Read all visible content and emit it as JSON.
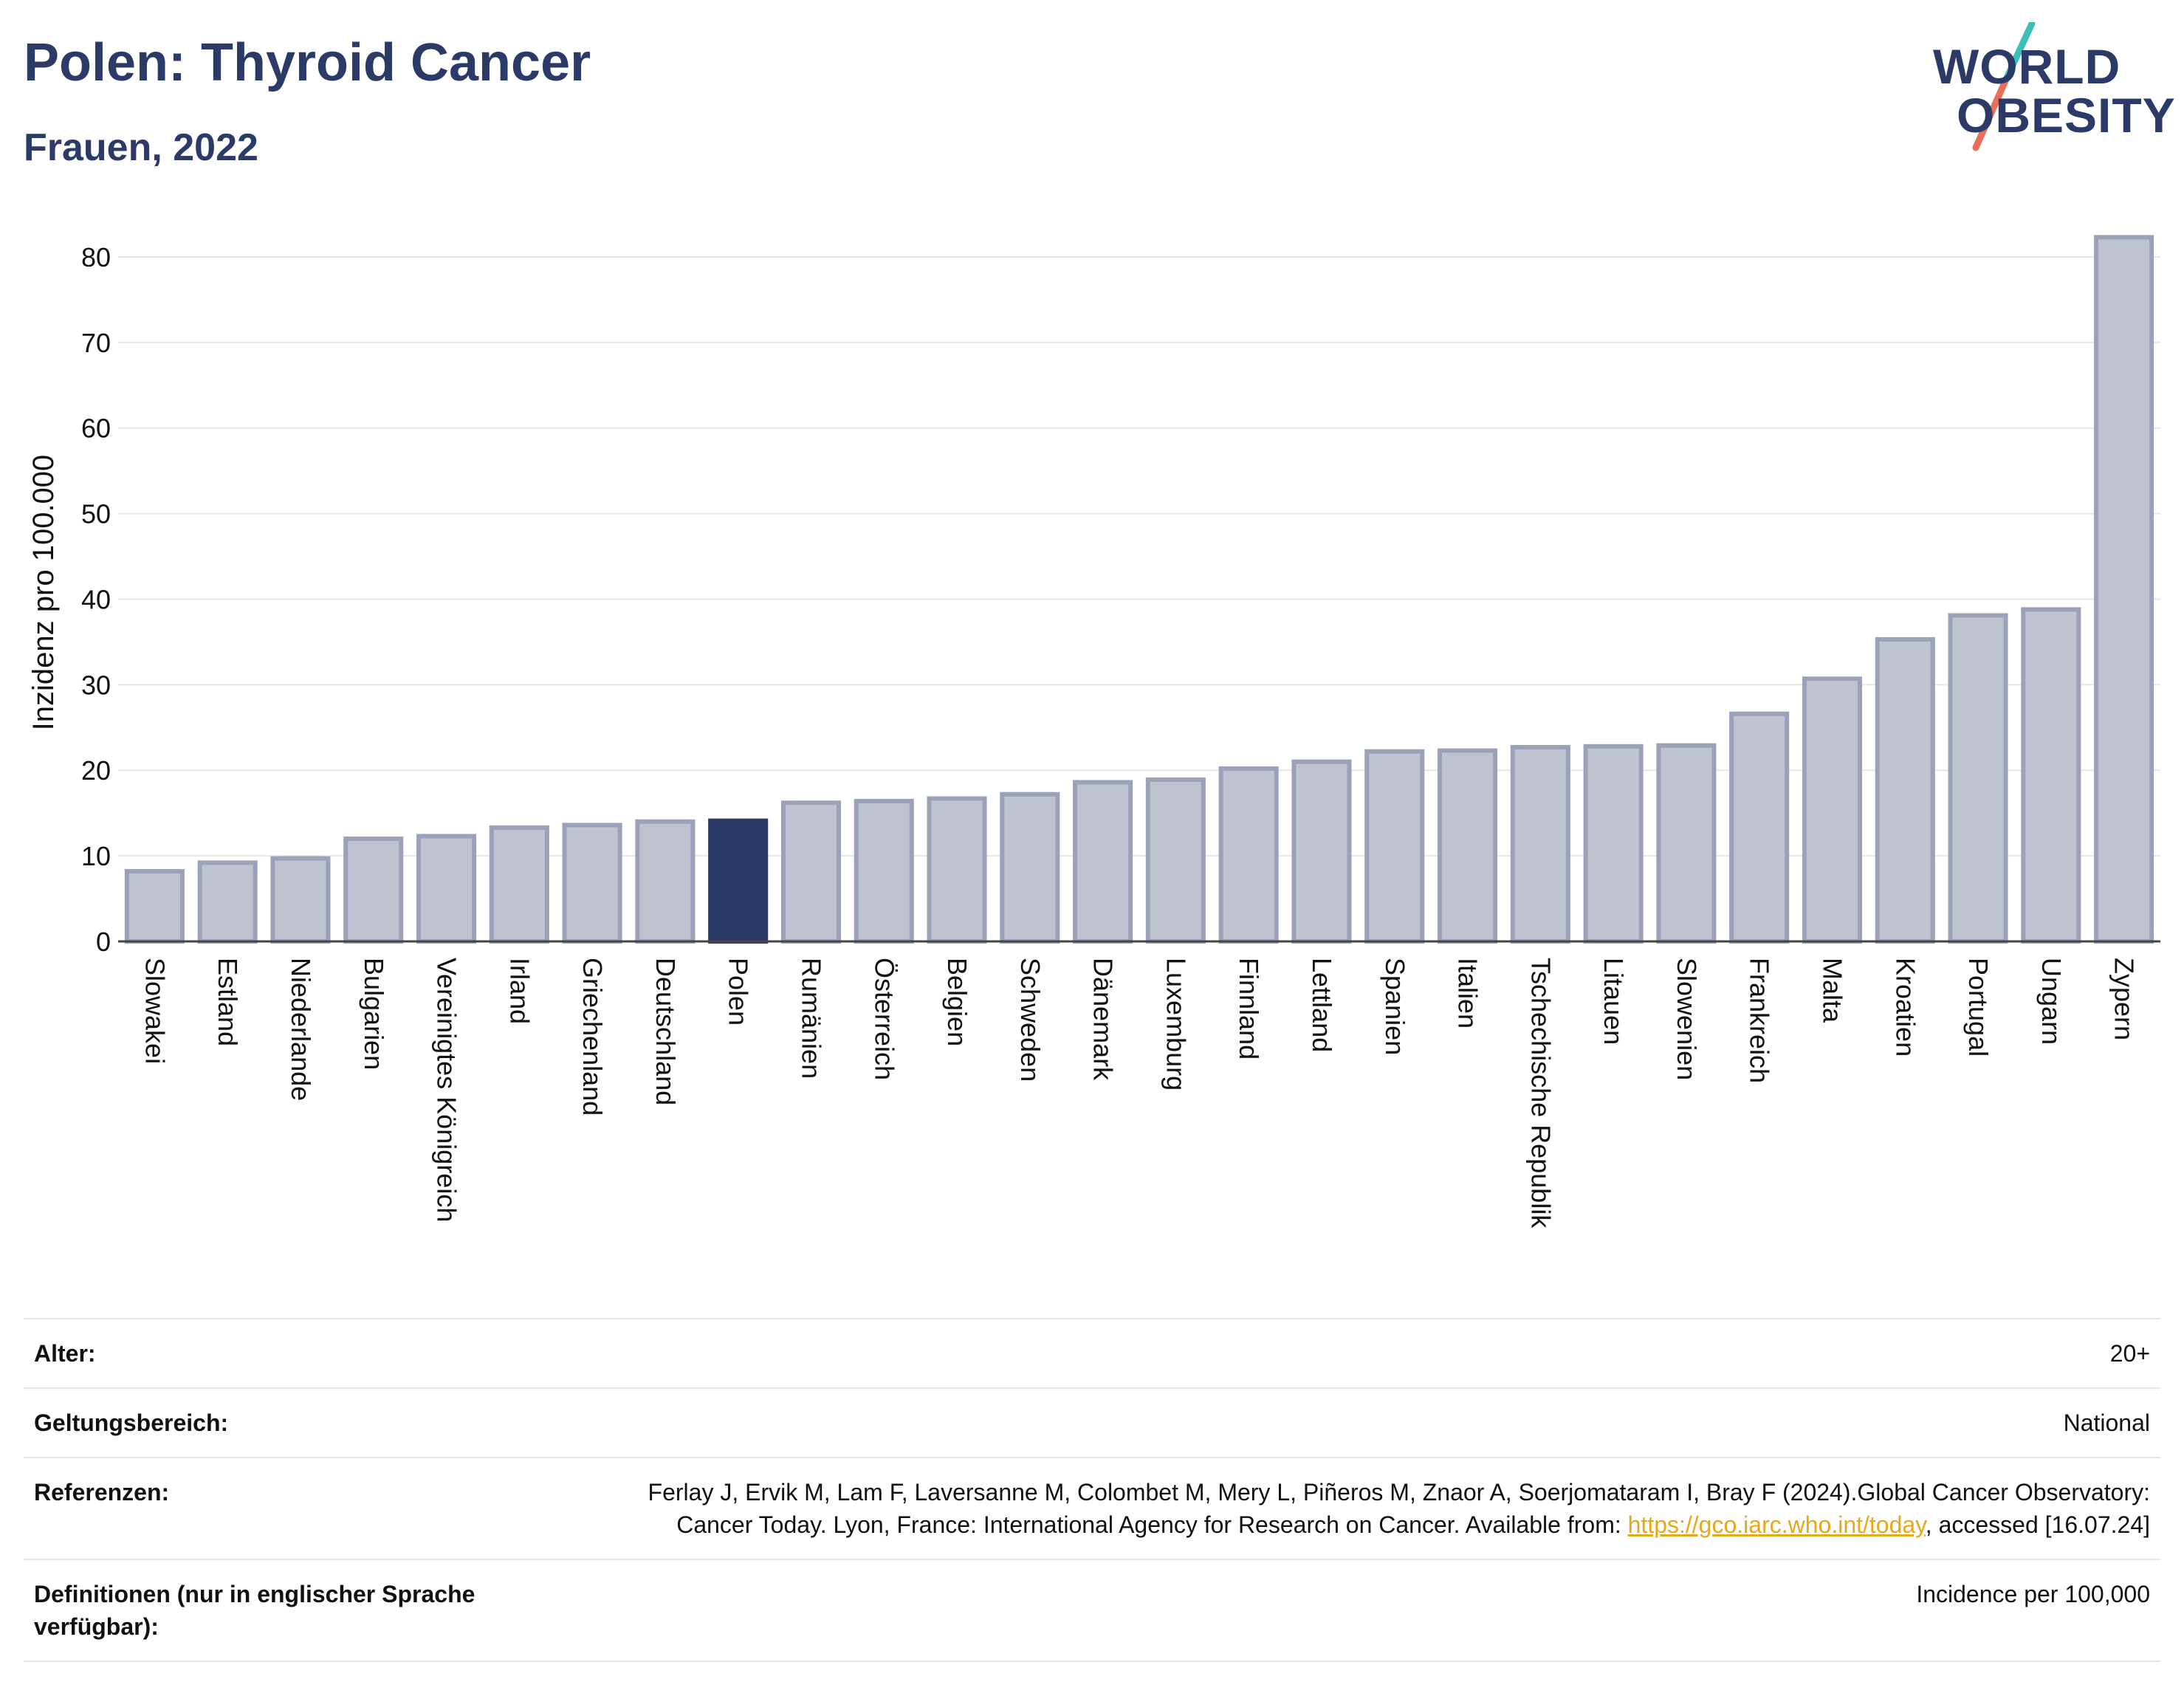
{
  "header": {
    "title": "Polen: Thyroid Cancer",
    "subtitle": "Frauen, 2022"
  },
  "logo": {
    "line1": "WORLD",
    "line2": "OBESITY"
  },
  "colors": {
    "bar_default": "#bfc3d0",
    "bar_border": "#9ba1b8",
    "bar_highlight": "#2b3a67",
    "title": "#2b3a67",
    "grid": "#e6e6e6",
    "link": "#e6a817",
    "logo_slash_top": "#3bbfb9",
    "logo_slash_bottom": "#e8705a"
  },
  "chart_data": {
    "type": "bar",
    "title": "Polen: Thyroid Cancer",
    "subtitle": "Frauen, 2022",
    "xlabel": "",
    "ylabel": "Inzidenz pro 100.000",
    "ylim": [
      0,
      85
    ],
    "yticks": [
      0,
      10,
      20,
      30,
      40,
      50,
      60,
      70,
      80
    ],
    "grid": true,
    "highlight": "Polen",
    "categories": [
      "Slowakei",
      "Estland",
      "Niederlande",
      "Bulgarien",
      "Vereinigtes Königreich",
      "Irland",
      "Griechenland",
      "Deutschland",
      "Polen",
      "Rumänien",
      "Österreich",
      "Belgien",
      "Schweden",
      "Dänemark",
      "Luxemburg",
      "Finnland",
      "Lettland",
      "Spanien",
      "Italien",
      "Tschechische Republik",
      "Litauen",
      "Slowenien",
      "Frankreich",
      "Malta",
      "Kroatien",
      "Portugal",
      "Ungarn",
      "Zypern"
    ],
    "values": [
      8.2,
      9.2,
      9.7,
      12.0,
      12.3,
      13.3,
      13.6,
      14.0,
      14.1,
      16.2,
      16.4,
      16.7,
      17.2,
      18.6,
      18.9,
      20.2,
      21.0,
      22.2,
      22.3,
      22.7,
      22.8,
      22.9,
      26.6,
      30.7,
      35.3,
      38.1,
      38.8,
      82.3
    ]
  },
  "info": [
    {
      "key": "Alter:",
      "value": "20+"
    },
    {
      "key": "Geltungsbereich:",
      "value": "National"
    },
    {
      "key": "Referenzen:",
      "value_pre": "Ferlay J, Ervik M, Lam F, Laversanne M, Colombet M, Mery L, Piñeros M, Znaor A, Soerjomataram I, Bray F (2024).Global Cancer Observatory: Cancer Today. Lyon, France: International Agency for Research on Cancer. Available from: ",
      "link": "https://gco.iarc.who.int/today",
      "value_post": ", accessed [16.07.24]"
    },
    {
      "key": "Definitionen (nur in englischer Sprache verfügbar):",
      "value": "Incidence per 100,000"
    }
  ]
}
